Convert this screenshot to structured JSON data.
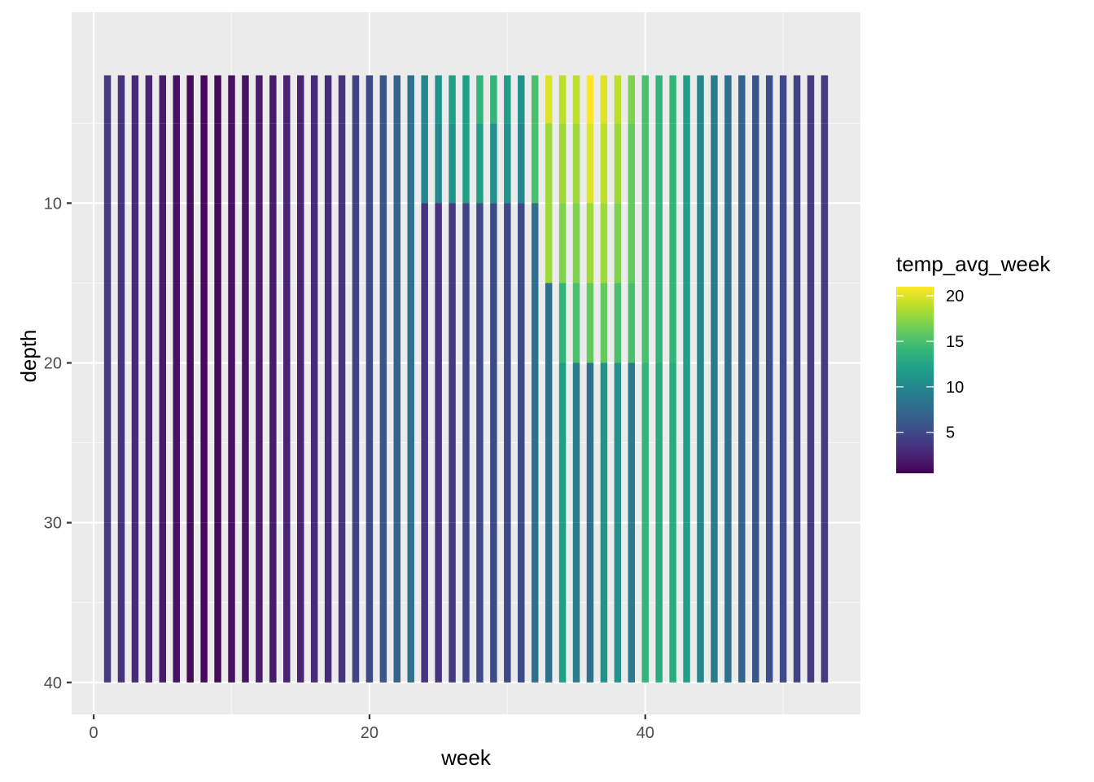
{
  "chart_data": {
    "type": "heatmap",
    "xlabel": "week",
    "ylabel": "depth",
    "xlim": [
      -1.6,
      55.6
    ],
    "ylim": [
      42,
      -1.95
    ],
    "y_reversed": true,
    "x_ticks": [
      0,
      20,
      40
    ],
    "x_tick_labels": [
      "0",
      "20",
      "40"
    ],
    "y_ticks": [
      10,
      20,
      30,
      40
    ],
    "y_tick_labels": [
      "10",
      "20",
      "30",
      "40"
    ],
    "grid": true,
    "fill_scale": "viridis",
    "fill_range": [
      0.5,
      21
    ],
    "weeks": [
      1,
      2,
      3,
      4,
      5,
      6,
      7,
      8,
      9,
      10,
      11,
      12,
      13,
      14,
      15,
      16,
      17,
      18,
      19,
      20,
      21,
      22,
      23,
      24,
      25,
      26,
      27,
      28,
      29,
      30,
      31,
      32,
      33,
      34,
      35,
      36,
      37,
      38,
      39,
      40,
      41,
      42,
      43,
      44,
      45,
      46,
      47,
      48,
      49,
      50,
      51,
      52,
      53
    ],
    "depth_layers": [
      {
        "from": 2,
        "to": 5
      },
      {
        "from": 5,
        "to": 10
      },
      {
        "from": 10,
        "to": 15
      },
      {
        "from": 15,
        "to": 20
      },
      {
        "from": 20,
        "to": 30
      },
      {
        "from": 30,
        "to": 40
      }
    ],
    "temp_by_week_layer": [
      [
        4,
        4,
        4,
        4,
        4,
        4
      ],
      [
        3.5,
        3.5,
        3.5,
        3.5,
        3.5,
        3.5
      ],
      [
        3,
        3,
        3,
        3,
        3,
        3
      ],
      [
        2.5,
        2.5,
        2.5,
        2.5,
        2.5,
        2.5
      ],
      [
        2,
        2,
        2,
        2,
        2,
        2
      ],
      [
        1.5,
        1.5,
        1.5,
        1.5,
        1.5,
        1.5
      ],
      [
        1,
        1,
        1,
        1,
        1,
        1
      ],
      [
        1,
        1,
        1,
        1,
        1,
        1
      ],
      [
        1,
        1,
        1,
        1,
        1,
        1
      ],
      [
        1.5,
        1.5,
        1.5,
        1.5,
        1.5,
        1.5
      ],
      [
        1.5,
        1.5,
        1.5,
        1.5,
        1.5,
        1.5
      ],
      [
        2,
        2,
        2,
        2,
        2,
        2
      ],
      [
        2,
        2,
        2,
        2,
        2,
        2
      ],
      [
        2.5,
        2.5,
        2.5,
        2.5,
        2.5,
        2.5
      ],
      [
        2.5,
        2.5,
        2.5,
        2.5,
        2.5,
        2.5
      ],
      [
        3,
        3,
        3,
        3,
        3,
        3
      ],
      [
        3,
        3,
        3,
        3,
        3,
        3
      ],
      [
        3.5,
        3.5,
        3.5,
        3.5,
        3.5,
        3.5
      ],
      [
        4.5,
        4.5,
        4.5,
        4.5,
        4.5,
        4.5
      ],
      [
        5,
        5,
        5,
        5,
        5,
        5
      ],
      [
        6,
        6,
        6,
        6,
        6,
        6
      ],
      [
        7,
        7,
        7,
        7,
        7,
        7
      ],
      [
        8,
        8,
        8,
        8,
        8,
        8
      ],
      [
        10,
        10,
        3.5,
        3.5,
        3.5,
        3.5
      ],
      [
        11,
        10,
        3.5,
        3.5,
        3.5,
        3.5
      ],
      [
        12,
        11,
        4,
        4,
        4,
        4
      ],
      [
        12,
        12,
        4.5,
        4.5,
        4.5,
        4.5
      ],
      [
        14,
        12,
        5,
        5,
        5,
        5
      ],
      [
        14,
        11,
        5,
        5,
        5,
        5
      ],
      [
        12,
        11,
        5,
        5,
        5,
        5
      ],
      [
        11,
        10,
        5,
        5,
        5,
        5
      ],
      [
        15,
        15,
        8,
        8,
        8,
        8
      ],
      [
        20,
        18,
        18,
        8,
        8,
        8
      ],
      [
        19,
        18,
        17,
        14,
        12,
        12
      ],
      [
        19,
        18,
        17,
        15,
        9,
        9
      ],
      [
        21,
        20,
        18,
        16,
        8,
        8
      ],
      [
        20,
        19,
        18,
        16,
        11,
        11
      ],
      [
        19,
        18,
        17,
        15,
        11,
        11
      ],
      [
        17,
        16,
        16,
        15,
        9,
        9
      ],
      [
        15,
        15,
        15,
        15,
        14,
        14
      ],
      [
        14,
        14,
        14,
        14,
        13,
        13
      ],
      [
        14,
        14,
        14,
        14,
        13,
        13
      ],
      [
        12,
        12,
        12,
        12,
        12,
        12
      ],
      [
        10,
        10,
        10,
        10,
        10,
        10
      ],
      [
        9,
        9,
        9,
        9,
        9,
        9
      ],
      [
        8,
        8,
        8,
        8,
        8,
        8
      ],
      [
        7,
        7,
        7,
        7,
        7,
        7
      ],
      [
        6,
        6,
        6,
        6,
        6,
        6
      ],
      [
        5.5,
        5.5,
        5.5,
        5.5,
        5.5,
        5.5
      ],
      [
        5,
        5,
        5,
        5,
        5,
        5
      ],
      [
        4.5,
        4.5,
        4.5,
        4.5,
        4.5,
        4.5
      ],
      [
        4,
        4,
        4,
        4,
        4,
        4
      ],
      [
        4,
        4,
        4,
        4,
        4,
        4
      ]
    ],
    "legend": {
      "title": "temp_avg_week",
      "labels": [
        "20",
        "15",
        "10",
        "5"
      ],
      "values": [
        20,
        15,
        10,
        5
      ],
      "position": "right"
    },
    "colors": {
      "panel_bg": "#ebebeb",
      "grid_major": "#ffffff",
      "grid_minor": "#f7f7f7",
      "viridis_stops": [
        "#440154",
        "#482878",
        "#3e4a89",
        "#31688e",
        "#26828e",
        "#1f9e89",
        "#35b779",
        "#6ece58",
        "#b5de2b",
        "#fde725"
      ]
    }
  }
}
